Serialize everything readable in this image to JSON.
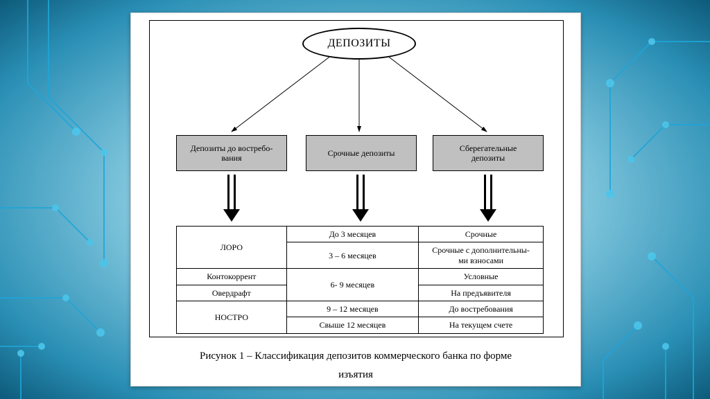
{
  "diagram": {
    "type": "flowchart-tree-with-table",
    "root": {
      "label": "ДЕПОЗИТЫ",
      "shape": "ellipse",
      "fontsize": 16
    },
    "categories": [
      {
        "label": "Депозиты до востребо-\nвания"
      },
      {
        "label": "Срочные депозиты"
      },
      {
        "label": "Сберегательные\nдепозиты"
      }
    ],
    "table": {
      "columns": 3,
      "col_widths_pct": [
        30,
        36,
        34
      ],
      "rows": [
        [
          {
            "text": "ЛОРО",
            "rowspan": 2
          },
          {
            "text": "До 3 месяцев"
          },
          {
            "text": "Срочные"
          }
        ],
        [
          {
            "text": "3 – 6 месяцев"
          },
          {
            "text": "Срочные с дополнительны-\nми взносами"
          }
        ],
        [
          {
            "text": "Контокоррент"
          },
          {
            "text": "6- 9 месяцев",
            "rowspan": 2
          },
          {
            "text": "Условные"
          }
        ],
        [
          {
            "text": "Овердрафт"
          },
          {
            "text": "На предъявителя"
          }
        ],
        [
          {
            "text": "НОСТРО",
            "rowspan": 2
          },
          {
            "text": "9 – 12 месяцев"
          },
          {
            "text": "До востребования"
          }
        ],
        [
          {
            "text": "Свыше 12 месяцев"
          },
          {
            "text": "На текущем счете"
          }
        ]
      ]
    },
    "caption_line1": "Рисунок 1 – Классификация депозитов коммерческого банка по форме",
    "caption_line2": "изъятия",
    "colors": {
      "box_fill": "#c0c0c0",
      "border": "#000000",
      "panel_bg": "#ffffff",
      "bg_gradient_inner": "#d8eef5",
      "bg_gradient_outer": "#0d5a7a",
      "circuit_line": "#1fa5d8",
      "circuit_node": "#4cc5ea"
    },
    "typography": {
      "font_family": "Times New Roman",
      "root_fontsize": 16,
      "box_fontsize": 12,
      "table_fontsize": 12,
      "caption_fontsize": 15
    },
    "arrows": {
      "thin_stroke": 1,
      "block_fill": "#000000"
    }
  }
}
